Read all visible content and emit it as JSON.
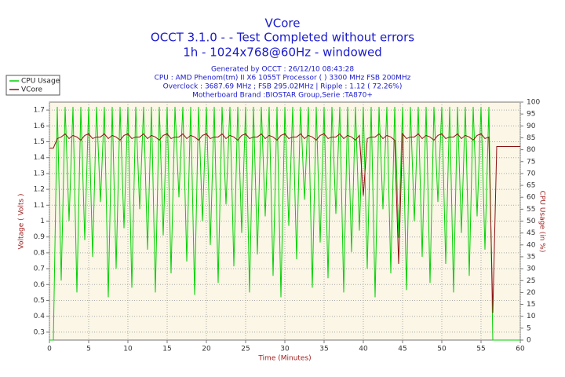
{
  "chart_data": {
    "type": "line",
    "title": "VCore",
    "subtitle": [
      "OCCT 3.1.0 -  - Test Completed without errors",
      "1h - 1024x768@60Hz - windowed"
    ],
    "info": [
      "Generated by OCCT : 26/12/10 08:43:28",
      "CPU : AMD Phenom(tm) II X6 1055T Processor (  ) 3300 MHz FSB 200MHz",
      "Overclock : 3687.69 MHz ; FSB 295.02MHz | Ripple : 1.12 ( 72.26%)",
      "Motherboard Brand :BIOSTAR Group,Serie :TA870+"
    ],
    "xlabel": "Time (Minutes)",
    "ylabel": "Voltage ( Volts )",
    "y2label": "CPU Usage (in %)",
    "xlim": [
      0,
      60
    ],
    "xticks": [
      0,
      5,
      10,
      15,
      20,
      25,
      30,
      35,
      40,
      45,
      50,
      55,
      60
    ],
    "ylim": [
      0.25,
      1.75
    ],
    "yticks": [
      0.3,
      0.4,
      0.5,
      0.6,
      0.7,
      0.8,
      0.9,
      1,
      1.1,
      1.2,
      1.3,
      1.4,
      1.5,
      1.6,
      1.7
    ],
    "y2lim": [
      0,
      100
    ],
    "y2ticks": [
      0,
      5,
      10,
      15,
      20,
      25,
      30,
      35,
      40,
      45,
      50,
      55,
      60,
      65,
      70,
      75,
      80,
      85,
      90,
      95,
      100
    ],
    "grid": true,
    "legend": "top-left",
    "x": [
      0,
      0.5,
      1,
      1.5,
      2,
      2.5,
      3,
      3.5,
      4,
      4.5,
      5,
      5.5,
      6,
      6.5,
      7,
      7.5,
      8,
      8.5,
      9,
      9.5,
      10,
      10.5,
      11,
      11.5,
      12,
      12.5,
      13,
      13.5,
      14,
      14.5,
      15,
      15.5,
      16,
      16.5,
      17,
      17.5,
      18,
      18.5,
      19,
      19.5,
      20,
      20.5,
      21,
      21.5,
      22,
      22.5,
      23,
      23.5,
      24,
      24.5,
      25,
      25.5,
      26,
      26.5,
      27,
      27.5,
      28,
      28.5,
      29,
      29.5,
      30,
      30.5,
      31,
      31.5,
      32,
      32.5,
      33,
      33.5,
      34,
      34.5,
      35,
      35.5,
      36,
      36.5,
      37,
      37.5,
      38,
      38.5,
      39,
      39.5,
      40,
      40.5,
      41,
      41.5,
      42,
      42.5,
      43,
      43.5,
      44,
      44.5,
      45,
      45.5,
      46,
      46.5,
      47,
      47.5,
      48,
      48.5,
      49,
      49.5,
      50,
      50.5,
      51,
      51.5,
      52,
      52.5,
      53,
      53.5,
      54,
      54.5,
      55,
      55.5,
      56,
      56.5,
      57,
      57.5,
      58,
      58.5,
      59,
      59.5,
      60
    ],
    "series": [
      {
        "name": "CPU Usage",
        "color": "#00d000",
        "axis": "y2",
        "values": [
          0,
          0,
          98,
          25,
          98,
          50,
          98,
          20,
          98,
          42,
          98,
          35,
          98,
          58,
          98,
          18,
          98,
          30,
          98,
          47,
          98,
          22,
          98,
          55,
          98,
          38,
          98,
          20,
          98,
          44,
          98,
          28,
          98,
          60,
          98,
          33,
          98,
          19,
          98,
          50,
          98,
          40,
          98,
          24,
          98,
          57,
          98,
          31,
          98,
          45,
          98,
          20,
          98,
          36,
          98,
          52,
          98,
          27,
          98,
          18,
          98,
          48,
          98,
          34,
          98,
          59,
          98,
          22,
          98,
          41,
          98,
          26,
          98,
          53,
          98,
          20,
          98,
          37,
          98,
          46,
          98,
          30,
          98,
          18,
          98,
          55,
          98,
          28,
          98,
          43,
          98,
          21,
          98,
          50,
          98,
          35,
          98,
          24,
          98,
          58,
          98,
          32,
          98,
          20,
          98,
          45,
          98,
          27,
          98,
          52,
          98,
          38,
          98,
          0,
          0,
          0,
          0,
          0,
          0,
          0,
          0
        ]
      },
      {
        "name": "VCore",
        "color": "#8b1010",
        "values": [
          1.46,
          1.46,
          1.52,
          1.53,
          1.55,
          1.52,
          1.54,
          1.53,
          1.51,
          1.54,
          1.55,
          1.52,
          1.53,
          1.53,
          1.55,
          1.52,
          1.54,
          1.53,
          1.51,
          1.54,
          1.55,
          1.52,
          1.53,
          1.53,
          1.55,
          1.52,
          1.54,
          1.53,
          1.51,
          1.54,
          1.55,
          1.52,
          1.53,
          1.53,
          1.55,
          1.52,
          1.54,
          1.53,
          1.51,
          1.54,
          1.55,
          1.52,
          1.53,
          1.53,
          1.55,
          1.52,
          1.54,
          1.53,
          1.51,
          1.54,
          1.55,
          1.52,
          1.53,
          1.53,
          1.55,
          1.52,
          1.54,
          1.53,
          1.51,
          1.54,
          1.55,
          1.52,
          1.53,
          1.53,
          1.55,
          1.52,
          1.54,
          1.53,
          1.51,
          1.54,
          1.55,
          1.52,
          1.53,
          1.53,
          1.55,
          1.52,
          1.54,
          1.53,
          1.51,
          1.54,
          1.16,
          1.52,
          1.53,
          1.53,
          1.55,
          1.52,
          1.54,
          1.53,
          1.51,
          0.73,
          1.55,
          1.52,
          1.53,
          1.53,
          1.55,
          1.52,
          1.54,
          1.53,
          1.51,
          1.54,
          1.55,
          1.52,
          1.53,
          1.53,
          1.55,
          1.52,
          1.54,
          1.53,
          1.51,
          1.54,
          1.55,
          1.52,
          1.53,
          0.42,
          1.47,
          1.47,
          1.47,
          1.47,
          1.47,
          1.47,
          1.47
        ]
      }
    ]
  }
}
